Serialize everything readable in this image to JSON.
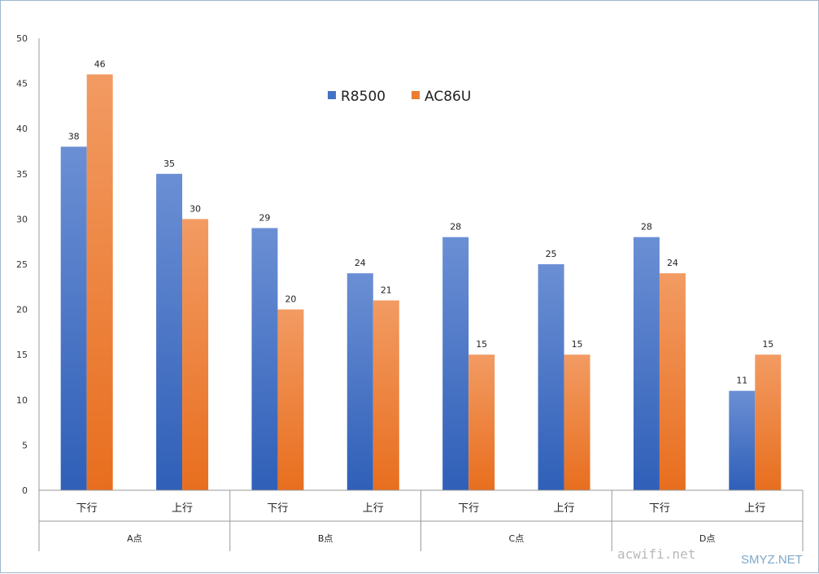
{
  "chart_data": {
    "type": "bar",
    "groups": [
      {
        "label": "A点",
        "categories": [
          "下行",
          "上行"
        ]
      },
      {
        "label": "B点",
        "categories": [
          "下行",
          "上行"
        ]
      },
      {
        "label": "C点",
        "categories": [
          "下行",
          "上行"
        ]
      },
      {
        "label": "D点",
        "categories": [
          "下行",
          "上行"
        ]
      }
    ],
    "categories": [
      "下行",
      "上行",
      "下行",
      "上行",
      "下行",
      "上行",
      "下行",
      "上行"
    ],
    "series": [
      {
        "name": "R8500",
        "values": [
          38,
          35,
          29,
          24,
          28,
          25,
          28,
          11
        ],
        "color": "#4472c4"
      },
      {
        "name": "AC86U",
        "values": [
          46,
          30,
          20,
          21,
          15,
          15,
          24,
          15
        ],
        "color": "#ed7d31"
      }
    ],
    "ylim": [
      0,
      50
    ],
    "yticks": [
      0,
      5,
      10,
      15,
      20,
      25,
      30,
      35,
      40,
      45,
      50
    ],
    "grid": false,
    "legend_position": "top-center",
    "data_labels": true
  },
  "watermarks": {
    "site1": "acwifi.net",
    "site2": "SMYZ.NET"
  }
}
